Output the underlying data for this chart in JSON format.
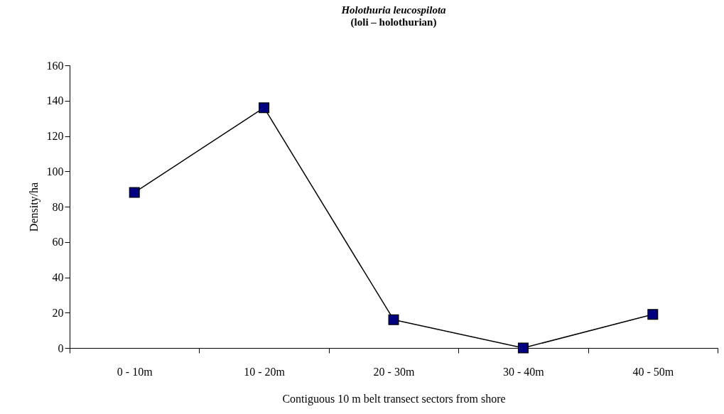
{
  "chart_data": {
    "type": "line",
    "title": "Holothuria leucospilota",
    "subtitle": "(loli – holothurian)",
    "xlabel": "Contiguous 10 m belt transect sectors from shore",
    "ylabel": "Density/ha",
    "categories": [
      "0 - 10m",
      "10 - 20m",
      "20 - 30m",
      "30 - 40m",
      "40 - 50m"
    ],
    "series": [
      {
        "color": "#000080",
        "values": [
          88,
          136,
          16,
          0,
          19
        ]
      }
    ],
    "ylim": [
      0,
      160
    ],
    "yticks": [
      0,
      20,
      40,
      60,
      80,
      100,
      120,
      140,
      160
    ],
    "grid": false,
    "marker": "square",
    "line_style": "solid"
  }
}
